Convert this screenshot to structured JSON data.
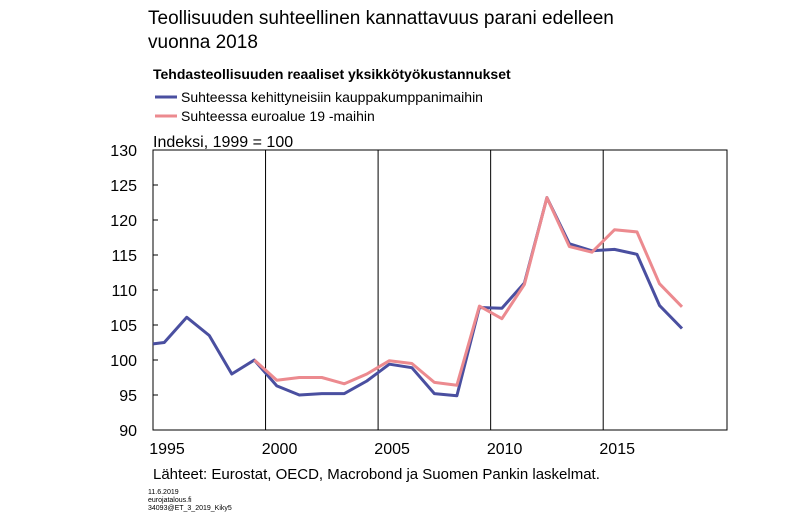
{
  "chart_data": {
    "type": "line",
    "title": [
      "Teollisuuden suhteellinen kannattavuus parani edelleen",
      "vuonna 2018"
    ],
    "subtitle": "Tehdasteollisuuden reaaliset yksikkötyökustannukset",
    "y_label": "Indeksi, 1999 = 100",
    "source": "Lähteet: Eurostat, OECD, Macrobond ja Suomen Pankin laskelmat.",
    "footer": [
      "11.6.2019",
      "eurojatalous.fi",
      "34093@ET_3_2019_Kiky5"
    ],
    "x": [
      1995.0,
      1995.5,
      1996.5,
      1997.5,
      1998.5,
      1999.5,
      2000.5,
      2001.5,
      2002.5,
      2003.5,
      2004.5,
      2005.5,
      2006.5,
      2007.5,
      2008.5,
      2009.5,
      2010.5,
      2011.5,
      2012.5,
      2013.5,
      2014.5,
      2015.5,
      2016.5,
      2017.5,
      2018.5
    ],
    "series": [
      {
        "name": "Suhteessa kehittyneisiin kauppakumppanimaihin",
        "color": "#4a4fa0",
        "values": [
          102.3,
          102.5,
          106.1,
          103.5,
          98.0,
          100,
          96.3,
          95.0,
          95.2,
          95.2,
          97.0,
          99.4,
          98.9,
          95.2,
          94.9,
          107.5,
          107.4,
          111.0,
          123.2,
          116.6,
          115.6,
          115.8,
          115.1,
          107.8,
          104.5
        ]
      },
      {
        "name": "Suhteessa euroalue 19 -maihin",
        "color": "#ec8a8f",
        "values": [
          null,
          null,
          null,
          null,
          null,
          100,
          97.1,
          97.5,
          97.5,
          96.6,
          98.0,
          99.9,
          99.5,
          96.8,
          96.4,
          107.7,
          105.9,
          110.8,
          123.2,
          116.2,
          115.4,
          118.6,
          118.3,
          110.9,
          107.6
        ]
      }
    ],
    "xlim": [
      1995,
      2020.5
    ],
    "xticks": [
      1995,
      2000,
      2005,
      2010,
      2015
    ],
    "ylim": [
      90,
      130
    ],
    "yticks": [
      90,
      95,
      100,
      105,
      110,
      115,
      120,
      125,
      130
    ],
    "grid": "x"
  }
}
